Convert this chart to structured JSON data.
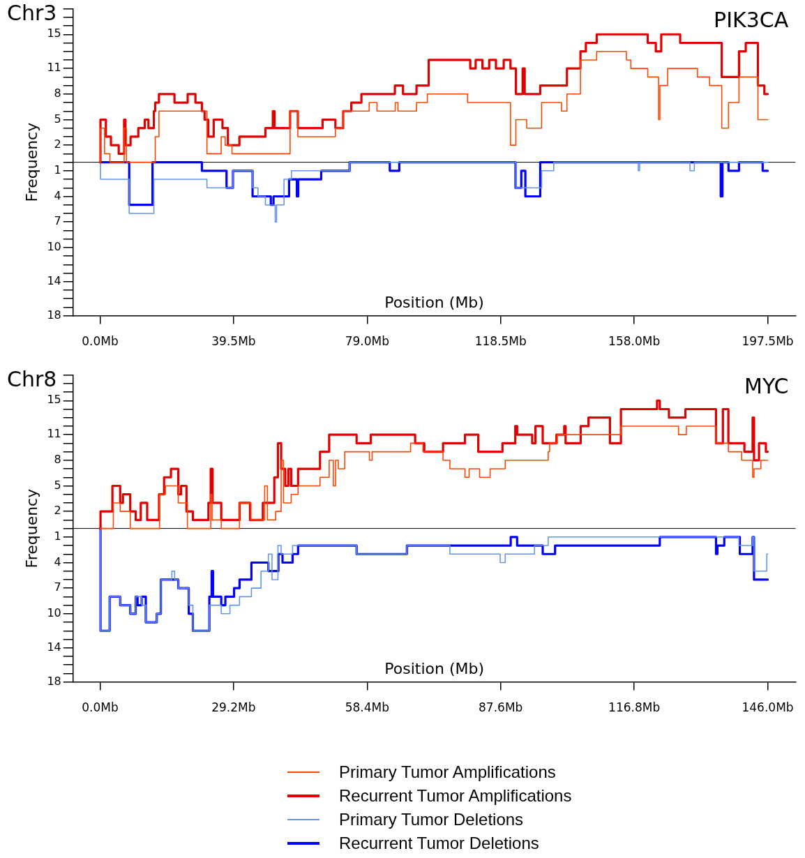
{
  "chart_data": [
    {
      "type": "step",
      "title": "Chr3",
      "xlabel": "Position (Mb)",
      "ylabel": "Frequency",
      "annotations": [
        "PIK3CA"
      ],
      "grid": false,
      "xlim": [
        -8,
        205.7
      ],
      "xticks": [
        {
          "value": 0,
          "label": "0.0Mb"
        },
        {
          "value": 39.5,
          "label": "39.5Mb"
        },
        {
          "value": 79,
          "label": "79.0Mb"
        },
        {
          "value": 118.5,
          "label": "118.5Mb"
        },
        {
          "value": 158,
          "label": "158.0Mb"
        },
        {
          "value": 197.5,
          "label": "197.5Mb"
        }
      ],
      "ylim": [
        -18,
        18
      ],
      "yticks": [
        {
          "value": -18,
          "label": "18"
        },
        {
          "value": -17,
          "label": null
        },
        {
          "value": -16,
          "label": null
        },
        {
          "value": -15,
          "label": null
        },
        {
          "value": -14,
          "label": "14"
        },
        {
          "value": -13,
          "label": null
        },
        {
          "value": -12,
          "label": null
        },
        {
          "value": -11,
          "label": null
        },
        {
          "value": -10,
          "label": "10"
        },
        {
          "value": -9,
          "label": null
        },
        {
          "value": -8,
          "label": null
        },
        {
          "value": -7,
          "label": "7"
        },
        {
          "value": -6,
          "label": null
        },
        {
          "value": -5,
          "label": null
        },
        {
          "value": -4,
          "label": "4"
        },
        {
          "value": -3,
          "label": null
        },
        {
          "value": -2,
          "label": null
        },
        {
          "value": -1,
          "label": "1"
        },
        {
          "value": 0,
          "label": null
        },
        {
          "value": 1,
          "label": null
        },
        2,
        {
          "value": 3,
          "label": null
        },
        {
          "value": 4,
          "label": null
        },
        5,
        {
          "value": 6,
          "label": null
        },
        {
          "value": 7,
          "label": null
        },
        8,
        {
          "value": 9,
          "label": null
        },
        {
          "value": 10,
          "label": null
        },
        11,
        {
          "value": 12,
          "label": null
        },
        {
          "value": 13,
          "label": null
        },
        {
          "value": 14,
          "label": null
        },
        15,
        {
          "value": 16,
          "label": null
        },
        {
          "value": 17,
          "label": null
        },
        {
          "value": 18,
          "label": null
        }
      ],
      "ref_lines": [
        {
          "axis": "y",
          "value": 0,
          "color": "#000000"
        }
      ],
      "series": [
        {
          "color": "#ff4500",
          "x": [
            0,
            0.1,
            1.3,
            2.9,
            7.1,
            7.8,
            16.3,
            17.4,
            31.6,
            35.8,
            37.0,
            39.0,
            56.2,
            58.5,
            69.6,
            71.9,
            79.6,
            81.9,
            87.3,
            88.1,
            93.6,
            96.8,
            108.7,
            121.4,
            123.0,
            126.2,
            130.6,
            136.5,
            138.1,
            142.1,
            146.9,
            155.7,
            157.0,
            162.0,
            165.2,
            165.6,
            167.9,
            176.7,
            180.3,
            183.9,
            185.9,
            189.0,
            194.6,
            197.5
          ],
          "values": [
            0,
            4,
            1,
            0,
            4,
            0,
            3,
            6,
            1,
            3,
            2,
            1,
            6,
            3,
            4,
            6,
            7,
            6,
            7,
            6,
            7,
            8,
            7,
            2,
            5,
            4,
            7,
            6,
            8,
            12,
            13,
            12,
            11,
            10,
            5,
            9,
            11,
            10,
            9,
            4,
            7,
            10,
            5,
            5
          ]
        },
        {
          "color": "#e00000",
          "x": [
            0,
            0.1,
            1.7,
            3.2,
            5.5,
            7.1,
            7.5,
            9.0,
            11.3,
            13.2,
            14.3,
            15.9,
            16.3,
            17.4,
            22.0,
            25.9,
            28.2,
            30.1,
            30.9,
            32.0,
            33.6,
            36.2,
            37.8,
            41.2,
            48.9,
            51.1,
            51.6,
            56.2,
            58.5,
            65.8,
            69.6,
            71.9,
            74.3,
            77.3,
            87.2,
            89.6,
            93.6,
            97.2,
            109.5,
            111.1,
            113.1,
            115.1,
            117.1,
            119.4,
            121.4,
            123.0,
            125.0,
            125.6,
            130.2,
            138.1,
            142.1,
            143.7,
            146.9,
            162.0,
            164.4,
            166.0,
            171.6,
            183.9,
            189.0,
            191.0,
            194.6,
            196.5,
            197.5
          ],
          "values": [
            0,
            5,
            3,
            2,
            1,
            5,
            2,
            3,
            4,
            5,
            4,
            6,
            7,
            8,
            7,
            8,
            7,
            6,
            5,
            3,
            5,
            4,
            2,
            3,
            4,
            6,
            4,
            6,
            4,
            5,
            4,
            6,
            7,
            8,
            9,
            8,
            9,
            12,
            11,
            12,
            11,
            12,
            11,
            12,
            11,
            8,
            11,
            8,
            9,
            11,
            13,
            14,
            15,
            14,
            13,
            15,
            14,
            10,
            13,
            14,
            9,
            8,
            8
          ]
        },
        {
          "color": "#6495ed",
          "x": [
            0,
            0.1,
            8.6,
            15.9,
            31.6,
            39.3,
            45.1,
            46.7,
            48.9,
            51.8,
            52.2,
            54.4,
            56.6,
            73.8,
            123.0,
            130.6,
            134.2,
            159.2,
            159.6,
            174.5,
            175.8,
            197.5
          ],
          "values": [
            0,
            -2,
            -6,
            -2,
            -3,
            -1,
            -3,
            -4,
            -5,
            -7,
            -5,
            -2,
            -1,
            0,
            -3,
            -1,
            0,
            -1,
            0,
            -1,
            0,
            0
          ]
        },
        {
          "color": "#0000ff",
          "x": [
            0,
            8.6,
            15.5,
            30.1,
            37.4,
            39.3,
            45.1,
            50.5,
            51.3,
            55.9,
            58.2,
            58.6,
            65.4,
            73.8,
            85.7,
            88.5,
            122.9,
            124.6,
            125.8,
            130.2,
            183.6,
            184.1,
            185.9,
            189.0,
            196.0,
            197.5
          ],
          "values": [
            0,
            -5,
            0,
            -1,
            -3,
            -1,
            -4,
            -5,
            -4,
            -2,
            -4,
            -2,
            -1,
            0,
            -1,
            0,
            -3,
            -1,
            -4,
            0,
            -4,
            0,
            -1,
            0,
            -1,
            -1
          ]
        }
      ]
    },
    {
      "type": "step",
      "title": "Chr8",
      "xlabel": "Position (Mb)",
      "ylabel": "Frequency",
      "annotations": [
        "MYC"
      ],
      "grid": false,
      "legend": "bottom",
      "xlim": [
        -5.9,
        152.1
      ],
      "xticks": [
        {
          "value": 0,
          "label": "0.0Mb"
        },
        {
          "value": 29.2,
          "label": "29.2Mb"
        },
        {
          "value": 58.4,
          "label": "58.4Mb"
        },
        {
          "value": 87.6,
          "label": "87.6Mb"
        },
        {
          "value": 116.8,
          "label": "116.8Mb"
        },
        {
          "value": 146,
          "label": "146.0Mb"
        }
      ],
      "ylim": [
        -18,
        18
      ],
      "yticks": [
        {
          "value": -18,
          "label": "18"
        },
        {
          "value": -17,
          "label": null
        },
        {
          "value": -16,
          "label": null
        },
        {
          "value": -15,
          "label": null
        },
        {
          "value": -14,
          "label": "14"
        },
        {
          "value": -13,
          "label": null
        },
        {
          "value": -12,
          "label": null
        },
        {
          "value": -11,
          "label": null
        },
        {
          "value": -10,
          "label": "10"
        },
        {
          "value": -9,
          "label": null
        },
        {
          "value": -8,
          "label": null
        },
        {
          "value": -7,
          "label": "7"
        },
        {
          "value": -6,
          "label": null
        },
        {
          "value": -5,
          "label": null
        },
        {
          "value": -4,
          "label": "4"
        },
        {
          "value": -3,
          "label": null
        },
        {
          "value": -2,
          "label": null
        },
        {
          "value": -1,
          "label": "1"
        },
        {
          "value": 0,
          "label": null
        },
        {
          "value": 1,
          "label": null
        },
        2,
        {
          "value": 3,
          "label": null
        },
        {
          "value": 4,
          "label": null
        },
        5,
        {
          "value": 6,
          "label": null
        },
        {
          "value": 7,
          "label": null
        },
        8,
        {
          "value": 9,
          "label": null
        },
        {
          "value": 10,
          "label": null
        },
        11,
        {
          "value": 12,
          "label": null
        },
        {
          "value": 13,
          "label": null
        },
        {
          "value": 14,
          "label": null
        },
        15,
        {
          "value": 16,
          "label": null
        },
        {
          "value": 17,
          "label": null
        },
        {
          "value": 18,
          "label": null
        }
      ],
      "ref_lines": [
        {
          "axis": "y",
          "value": 0,
          "color": "#000000"
        }
      ],
      "series": [
        {
          "name": "Primary Tumor Amplifications",
          "color": "#ff4500",
          "x": [
            0,
            2.9,
            4.4,
            6.6,
            13.0,
            14.3,
            17.1,
            19.1,
            24.2,
            24.5,
            26.5,
            30.5,
            33.0,
            36.0,
            36.6,
            38.4,
            39.6,
            40.1,
            41.8,
            43.3,
            48.1,
            50.1,
            51.0,
            51.5,
            52.1,
            53.5,
            58.9,
            59.5,
            67.9,
            70.6,
            75.0,
            76.5,
            79.8,
            80.7,
            83.0,
            85.3,
            88.6,
            98.0,
            98.3,
            100.0,
            113.9,
            126.5,
            128.2,
            134.7,
            137.4,
            140.3,
            142.7,
            143.0,
            144.5,
            146
          ],
          "values": [
            0,
            3,
            2,
            0,
            4,
            5,
            3,
            0,
            4,
            1,
            0,
            3,
            1,
            5,
            1,
            2,
            8,
            3,
            4,
            5,
            6,
            8,
            5,
            8,
            7,
            9,
            8,
            9,
            10,
            9,
            8,
            7,
            6,
            7,
            6,
            7,
            8,
            9,
            10,
            11,
            12,
            11,
            12,
            10,
            9,
            8,
            6,
            7,
            8,
            8
          ]
        },
        {
          "name": "Recurrent Tumor Amplifications",
          "color": "#e00000",
          "x": [
            0,
            0.1,
            2.7,
            4.4,
            5.0,
            6.6,
            7.8,
            8.9,
            10.3,
            12.9,
            14.0,
            15.5,
            17.1,
            17.7,
            18.9,
            20.3,
            23.7,
            24.2,
            24.6,
            26.5,
            30.5,
            32.8,
            35.6,
            38.1,
            38.9,
            39.6,
            40.5,
            41.2,
            41.8,
            43.3,
            48.1,
            50.1,
            56.1,
            59.2,
            68.9,
            70.9,
            75.0,
            79.8,
            82.7,
            88.0,
            90.8,
            91.2,
            94.5,
            95.2,
            96.8,
            99.8,
            101.5,
            101.8,
            105.1,
            106.8,
            111.5,
            113.9,
            121.8,
            122.4,
            124.4,
            128.0,
            134.7,
            136.2,
            137.4,
            140.9,
            142.7,
            143.0,
            144.1,
            145.6,
            146
          ],
          "values": [
            0,
            2,
            5,
            3,
            4,
            2,
            1,
            3,
            1,
            4,
            6,
            7,
            4,
            5,
            2,
            1,
            3,
            7,
            3,
            1,
            3,
            1,
            3,
            6,
            10,
            7,
            5,
            7,
            5,
            7,
            9,
            11,
            10,
            11,
            10,
            9,
            10,
            11,
            9,
            10,
            12,
            11,
            10,
            12,
            10,
            11,
            12,
            10,
            12,
            13,
            10,
            14,
            15,
            14,
            13,
            14,
            10,
            14,
            10,
            9,
            13,
            8,
            10,
            9,
            9
          ]
        },
        {
          "name": "Primary Tumor Deletions",
          "color": "#6495ed",
          "x": [
            0,
            0.1,
            2.1,
            4.4,
            6.6,
            7.8,
            9.1,
            10.0,
            12.4,
            13.3,
            15.7,
            16.3,
            17.1,
            19.4,
            20.3,
            23.9,
            26.5,
            28.4,
            30.5,
            33.1,
            35.2,
            36.8,
            37.6,
            38.9,
            39.6,
            42.1,
            56.1,
            67.1,
            76.5,
            87.5,
            88.6,
            95.0,
            98.0,
            139.7,
            142.7,
            143.0,
            145.8,
            146
          ],
          "values": [
            0,
            -12,
            -8,
            -9,
            -10,
            -8,
            -9,
            -11,
            -10,
            -6,
            -5,
            -6,
            -7,
            -9,
            -12,
            -9,
            -10,
            -9,
            -8,
            -7,
            -5,
            -3,
            -6,
            -2,
            -3,
            -2,
            -3,
            -2,
            -3,
            -4,
            -3,
            -2,
            -1,
            -2,
            -1,
            -5,
            -3,
            -3
          ]
        },
        {
          "name": "Recurrent Tumor Deletions",
          "color": "#0000ff",
          "x": [
            0,
            0.1,
            2.1,
            4.4,
            6.6,
            7.8,
            8.2,
            9.1,
            10.0,
            12.4,
            13.3,
            17.1,
            19.4,
            20.3,
            23.9,
            24.4,
            24.7,
            26.5,
            27.4,
            29.3,
            30.5,
            33.1,
            36.8,
            39.0,
            39.9,
            42.1,
            43.3,
            56.1,
            67.1,
            89.8,
            91.2,
            96.8,
            99.5,
            111.5,
            122.4,
            134.7,
            135.0,
            136.5,
            139.9,
            142.7,
            143.0,
            146
          ],
          "values": [
            0,
            -12,
            -8,
            -9,
            -10,
            -8,
            -9,
            -8,
            -11,
            -10,
            -6,
            -7,
            -10,
            -12,
            -8,
            -5,
            -8,
            -9,
            -8,
            -7,
            -6,
            -4,
            -5,
            -3,
            -4,
            -3,
            -2,
            -3,
            -2,
            -1,
            -2,
            -3,
            -2,
            -2,
            -1,
            -3,
            -2,
            -1,
            -3,
            -1,
            -6,
            -6
          ]
        }
      ]
    }
  ]
}
